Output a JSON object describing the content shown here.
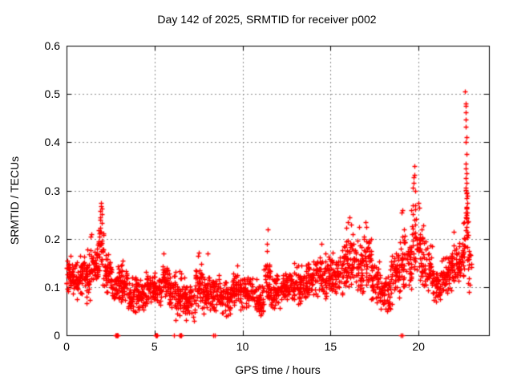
{
  "chart_data": {
    "type": "scatter",
    "title": "Day 142 of 2025, SRMTID for receiver p002",
    "xlabel": "GPS time / hours",
    "ylabel": "SRMTID / TECUs",
    "xlim": [
      0,
      24
    ],
    "ylim": [
      0,
      0.6
    ],
    "xticks": {
      "values": [
        0,
        5,
        10,
        15,
        20
      ],
      "labels": [
        "0",
        "5",
        "10",
        "15",
        "20"
      ]
    },
    "yticks": {
      "values": [
        0,
        0.1,
        0.2,
        0.3,
        0.4,
        0.5,
        0.6
      ],
      "labels": [
        "0",
        "0.1",
        "0.2",
        "0.3",
        "0.4",
        "0.5",
        "0.6"
      ]
    },
    "grid": "dashed",
    "grid_color": "#8c8c8c",
    "border_color": "#000000",
    "legend": "none",
    "series_name": "SRMTID",
    "marker": {
      "shape": "plus",
      "color": "#ff0000",
      "size": 7
    },
    "density_bands_format": "[x_start_hours, x_end_hours, y_min_TECUs, y_max_TECUs, approx_point_count]",
    "density_bands": [
      [
        0.0,
        0.3,
        0.08,
        0.17,
        30
      ],
      [
        0.3,
        0.7,
        0.07,
        0.16,
        40
      ],
      [
        0.7,
        1.1,
        0.08,
        0.17,
        40
      ],
      [
        1.1,
        1.5,
        0.06,
        0.19,
        40
      ],
      [
        1.5,
        1.8,
        0.1,
        0.19,
        30
      ],
      [
        1.8,
        2.1,
        0.1,
        0.25,
        30
      ],
      [
        2.1,
        2.5,
        0.08,
        0.18,
        40
      ],
      [
        2.5,
        3.0,
        0.06,
        0.15,
        48
      ],
      [
        3.0,
        3.5,
        0.05,
        0.15,
        48
      ],
      [
        3.5,
        4.0,
        0.035,
        0.13,
        48
      ],
      [
        4.0,
        4.5,
        0.05,
        0.12,
        48
      ],
      [
        4.5,
        5.0,
        0.06,
        0.14,
        48
      ],
      [
        5.0,
        5.4,
        0.05,
        0.14,
        38
      ],
      [
        5.4,
        5.8,
        0.07,
        0.165,
        38
      ],
      [
        5.8,
        6.2,
        0.05,
        0.14,
        38
      ],
      [
        6.2,
        6.7,
        0.025,
        0.135,
        45
      ],
      [
        6.7,
        7.3,
        0.025,
        0.11,
        55
      ],
      [
        7.3,
        7.7,
        0.05,
        0.155,
        38
      ],
      [
        7.7,
        8.2,
        0.04,
        0.14,
        45
      ],
      [
        8.2,
        8.7,
        0.04,
        0.13,
        45
      ],
      [
        8.7,
        9.3,
        0.035,
        0.12,
        55
      ],
      [
        9.3,
        10.0,
        0.05,
        0.13,
        62
      ],
      [
        10.0,
        10.6,
        0.05,
        0.13,
        55
      ],
      [
        10.6,
        11.2,
        0.035,
        0.12,
        55
      ],
      [
        11.2,
        11.6,
        0.06,
        0.17,
        35
      ],
      [
        11.6,
        12.2,
        0.05,
        0.13,
        55
      ],
      [
        12.2,
        13.0,
        0.06,
        0.135,
        70
      ],
      [
        13.0,
        13.6,
        0.06,
        0.15,
        55
      ],
      [
        13.6,
        14.2,
        0.07,
        0.16,
        55
      ],
      [
        14.2,
        14.8,
        0.07,
        0.175,
        55
      ],
      [
        14.8,
        15.4,
        0.07,
        0.175,
        55
      ],
      [
        15.4,
        15.9,
        0.08,
        0.19,
        45
      ],
      [
        15.9,
        16.4,
        0.09,
        0.225,
        45
      ],
      [
        16.4,
        16.9,
        0.08,
        0.2,
        45
      ],
      [
        16.9,
        17.3,
        0.08,
        0.215,
        38
      ],
      [
        17.3,
        17.8,
        0.06,
        0.16,
        45
      ],
      [
        17.8,
        18.4,
        0.04,
        0.13,
        55
      ],
      [
        18.4,
        18.9,
        0.06,
        0.19,
        45
      ],
      [
        18.9,
        19.3,
        0.08,
        0.245,
        38
      ],
      [
        19.3,
        19.6,
        0.09,
        0.2,
        28
      ],
      [
        19.6,
        19.85,
        0.12,
        0.3,
        26
      ],
      [
        19.85,
        20.3,
        0.1,
        0.27,
        42
      ],
      [
        20.3,
        20.8,
        0.08,
        0.2,
        45
      ],
      [
        20.8,
        21.3,
        0.06,
        0.15,
        45
      ],
      [
        21.3,
        21.8,
        0.08,
        0.17,
        45
      ],
      [
        21.8,
        22.3,
        0.09,
        0.2,
        45
      ],
      [
        22.3,
        22.6,
        0.1,
        0.22,
        30
      ],
      [
        22.55,
        22.8,
        0.12,
        0.31,
        22
      ],
      [
        22.75,
        23.0,
        0.08,
        0.21,
        18
      ]
    ],
    "outlier_points": [
      [
        1.35,
        0.205
      ],
      [
        1.4,
        0.21
      ],
      [
        1.9,
        0.245
      ],
      [
        1.92,
        0.258
      ],
      [
        1.95,
        0.268
      ],
      [
        1.97,
        0.275
      ],
      [
        1.99,
        0.262
      ],
      [
        2.0,
        0.251
      ],
      [
        1.93,
        0.24
      ],
      [
        2.02,
        0.232
      ],
      [
        3.2,
        0.155
      ],
      [
        5.5,
        0.17
      ],
      [
        7.45,
        0.165
      ],
      [
        7.5,
        0.172
      ],
      [
        8.0,
        0.17
      ],
      [
        9.7,
        0.145
      ],
      [
        11.38,
        0.19
      ],
      [
        11.42,
        0.22
      ],
      [
        11.4,
        0.175
      ],
      [
        12.95,
        0.15
      ],
      [
        14.5,
        0.19
      ],
      [
        16.0,
        0.235
      ],
      [
        16.08,
        0.245
      ],
      [
        16.15,
        0.23
      ],
      [
        16.6,
        0.225
      ],
      [
        17.0,
        0.235
      ],
      [
        17.05,
        0.225
      ],
      [
        19.05,
        0.255
      ],
      [
        19.1,
        0.26
      ],
      [
        19.68,
        0.305
      ],
      [
        19.7,
        0.315
      ],
      [
        19.72,
        0.327
      ],
      [
        19.75,
        0.35
      ],
      [
        19.78,
        0.332
      ],
      [
        19.8,
        0.3
      ],
      [
        20.0,
        0.275
      ],
      [
        20.05,
        0.265
      ],
      [
        22.0,
        0.215
      ],
      [
        22.65,
        0.505
      ],
      [
        22.66,
        0.48
      ],
      [
        22.68,
        0.475
      ],
      [
        22.67,
        0.462
      ],
      [
        22.7,
        0.447
      ],
      [
        22.69,
        0.432
      ],
      [
        22.71,
        0.41
      ],
      [
        22.7,
        0.4
      ],
      [
        22.72,
        0.375
      ],
      [
        22.68,
        0.355
      ],
      [
        22.7,
        0.345
      ],
      [
        22.72,
        0.335
      ],
      [
        22.69,
        0.325
      ],
      [
        22.73,
        0.315
      ],
      [
        22.7,
        0.305
      ],
      [
        22.74,
        0.295
      ],
      [
        22.71,
        0.285
      ],
      [
        22.75,
        0.275
      ],
      [
        22.72,
        0.265
      ],
      [
        22.76,
        0.255
      ],
      [
        22.73,
        0.245
      ],
      [
        22.77,
        0.235
      ],
      [
        22.74,
        0.225
      ],
      [
        22.78,
        0.215
      ]
    ],
    "zero_value_points_x": [
      2.8,
      2.83,
      2.86,
      2.89,
      2.92,
      5.06,
      5.09,
      5.12,
      5.15,
      6.1,
      6.44,
      6.47,
      6.5,
      6.53,
      8.32,
      8.42,
      19.0,
      19.08
    ]
  }
}
